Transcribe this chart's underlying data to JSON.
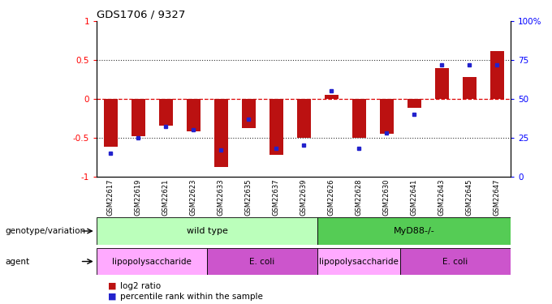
{
  "title": "GDS1706 / 9327",
  "samples": [
    "GSM22617",
    "GSM22619",
    "GSM22621",
    "GSM22623",
    "GSM22633",
    "GSM22635",
    "GSM22637",
    "GSM22639",
    "GSM22626",
    "GSM22628",
    "GSM22630",
    "GSM22641",
    "GSM22643",
    "GSM22645",
    "GSM22647"
  ],
  "log2_ratio": [
    -0.62,
    -0.48,
    -0.35,
    -0.42,
    -0.88,
    -0.38,
    -0.72,
    -0.5,
    0.05,
    -0.5,
    -0.45,
    -0.12,
    0.4,
    0.28,
    0.62
  ],
  "percentile": [
    15,
    25,
    32,
    30,
    17,
    37,
    18,
    20,
    55,
    18,
    28,
    40,
    72,
    72,
    72
  ],
  "bar_color": "#bb1111",
  "dot_color": "#2222cc",
  "ylim_left": [
    -1,
    1
  ],
  "left_yticks": [
    -1,
    -0.5,
    0,
    0.5,
    1
  ],
  "left_yticklabels": [
    "-1",
    "-0.5",
    "0",
    "0.5",
    "1"
  ],
  "right_yticks": [
    0,
    25,
    50,
    75,
    100
  ],
  "right_yticklabels": [
    "0",
    "25",
    "50",
    "75",
    "100%"
  ],
  "hline_zero_color": "#dd0000",
  "hline_dotted_color": "#333333",
  "genotype_groups": [
    {
      "label": "wild type",
      "start": 0,
      "end": 8,
      "color": "#bbffbb"
    },
    {
      "label": "MyD88-/-",
      "start": 8,
      "end": 15,
      "color": "#55cc55"
    }
  ],
  "agent_groups": [
    {
      "label": "lipopolysaccharide",
      "start": 0,
      "end": 4,
      "color": "#ffaaff"
    },
    {
      "label": "E. coli",
      "start": 4,
      "end": 8,
      "color": "#cc55cc"
    },
    {
      "label": "lipopolysaccharide",
      "start": 8,
      "end": 11,
      "color": "#ffaaff"
    },
    {
      "label": "E. coli",
      "start": 11,
      "end": 15,
      "color": "#cc55cc"
    }
  ],
  "legend_items": [
    {
      "label": "log2 ratio",
      "color": "#bb1111"
    },
    {
      "label": "percentile rank within the sample",
      "color": "#2222cc"
    }
  ],
  "bar_width": 0.5
}
